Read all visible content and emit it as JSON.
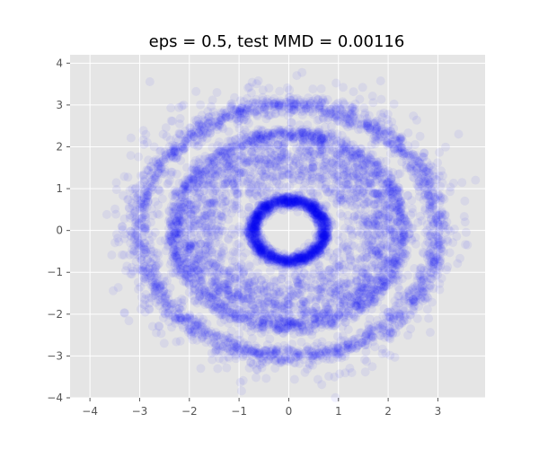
{
  "chart_data": {
    "type": "scatter",
    "title": "eps = 0.5, test MMD = 0.00116",
    "xlabel": "",
    "ylabel": "",
    "xlim": [
      -4.4,
      3.95
    ],
    "ylim": [
      -4.0,
      4.2
    ],
    "xticks": [
      -4,
      -3,
      -2,
      -1,
      0,
      1,
      2,
      3
    ],
    "yticks": [
      -4,
      -3,
      -2,
      -1,
      0,
      1,
      2,
      3,
      4
    ],
    "grid": true,
    "style": "ggplot",
    "point_color": "#0000ff",
    "point_alpha": 0.06,
    "series": [
      {
        "shape": "ring",
        "center": [
          0,
          0
        ],
        "radius": 3.0,
        "spread": 0.12,
        "points": 1600
      },
      {
        "shape": "ring",
        "center": [
          0,
          0
        ],
        "radius": 2.3,
        "spread": 0.1,
        "points": 1400
      },
      {
        "shape": "ring",
        "center": [
          0,
          0
        ],
        "radius": 0.72,
        "spread": 0.07,
        "points": 1300
      },
      {
        "shape": "disk",
        "center": [
          0,
          0
        ],
        "inner_radius": 0.9,
        "outer_radius": 2.15,
        "points": 1800
      },
      {
        "shape": "scatter-noise",
        "center": [
          0,
          0
        ],
        "radius": 3.2,
        "spread": 0.35,
        "points": 450
      }
    ]
  }
}
